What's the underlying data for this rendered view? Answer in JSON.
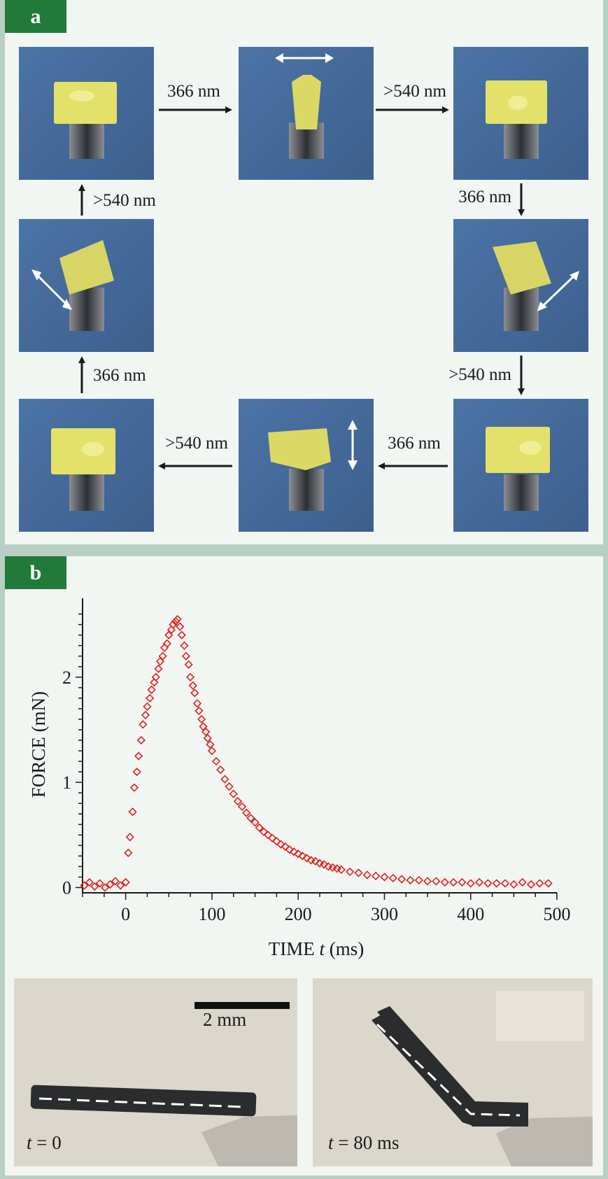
{
  "panel_a": {
    "label": "a",
    "wavelengths": {
      "uv": "366 nm",
      "vis": ">540 nm"
    }
  },
  "panel_b": {
    "label": "b",
    "chart_data": {
      "type": "scatter",
      "title": "",
      "xlabel_prefix": "TIME ",
      "xlabel_var": "t",
      "xlabel_suffix": " (ms)",
      "ylabel": "FORCE (mN)",
      "xlim": [
        -50,
        500
      ],
      "ylim": [
        -0.05,
        2.75
      ],
      "xticks": [
        0,
        100,
        200,
        300,
        400,
        500
      ],
      "yticks": [
        0,
        1,
        2
      ],
      "series": [
        {
          "name": "force",
          "color": "#e0201e",
          "marker": "diamond",
          "x": [
            -48,
            -42,
            -36,
            -30,
            -24,
            -18,
            -12,
            -6,
            0,
            3,
            5,
            8,
            10,
            13,
            15,
            18,
            20,
            23,
            25,
            28,
            30,
            33,
            35,
            38,
            40,
            43,
            45,
            48,
            50,
            53,
            55,
            58,
            60,
            63,
            65,
            68,
            70,
            73,
            75,
            78,
            80,
            83,
            85,
            88,
            90,
            93,
            95,
            98,
            100,
            105,
            110,
            115,
            120,
            125,
            130,
            135,
            140,
            145,
            150,
            155,
            160,
            165,
            170,
            175,
            180,
            185,
            190,
            195,
            200,
            205,
            210,
            215,
            220,
            225,
            230,
            235,
            240,
            245,
            250,
            260,
            270,
            280,
            290,
            300,
            310,
            320,
            330,
            340,
            350,
            360,
            370,
            380,
            390,
            400,
            410,
            420,
            430,
            440,
            450,
            460,
            470,
            480,
            490
          ],
          "y": [
            0.02,
            0.05,
            0.01,
            0.04,
            0.0,
            0.03,
            0.06,
            0.02,
            0.05,
            0.33,
            0.48,
            0.72,
            0.95,
            1.1,
            1.25,
            1.4,
            1.55,
            1.64,
            1.72,
            1.8,
            1.88,
            1.95,
            2.0,
            2.08,
            2.15,
            2.2,
            2.28,
            2.32,
            2.4,
            2.45,
            2.5,
            2.53,
            2.55,
            2.48,
            2.4,
            2.3,
            2.2,
            2.12,
            2.0,
            1.92,
            1.85,
            1.75,
            1.68,
            1.6,
            1.53,
            1.48,
            1.42,
            1.36,
            1.3,
            1.2,
            1.12,
            1.03,
            0.96,
            0.89,
            0.82,
            0.77,
            0.71,
            0.66,
            0.62,
            0.57,
            0.53,
            0.5,
            0.47,
            0.44,
            0.41,
            0.39,
            0.36,
            0.34,
            0.32,
            0.3,
            0.28,
            0.26,
            0.25,
            0.23,
            0.22,
            0.2,
            0.19,
            0.18,
            0.17,
            0.15,
            0.14,
            0.12,
            0.11,
            0.1,
            0.09,
            0.08,
            0.07,
            0.07,
            0.06,
            0.06,
            0.05,
            0.05,
            0.05,
            0.04,
            0.05,
            0.04,
            0.04,
            0.04,
            0.03,
            0.05,
            0.03,
            0.04,
            0.04
          ]
        }
      ]
    },
    "photo_left": {
      "var": "t",
      "suffix": " = 0",
      "scale_bar": "2 mm"
    },
    "photo_right": {
      "var": "t",
      "suffix": " = 80 ms"
    }
  }
}
